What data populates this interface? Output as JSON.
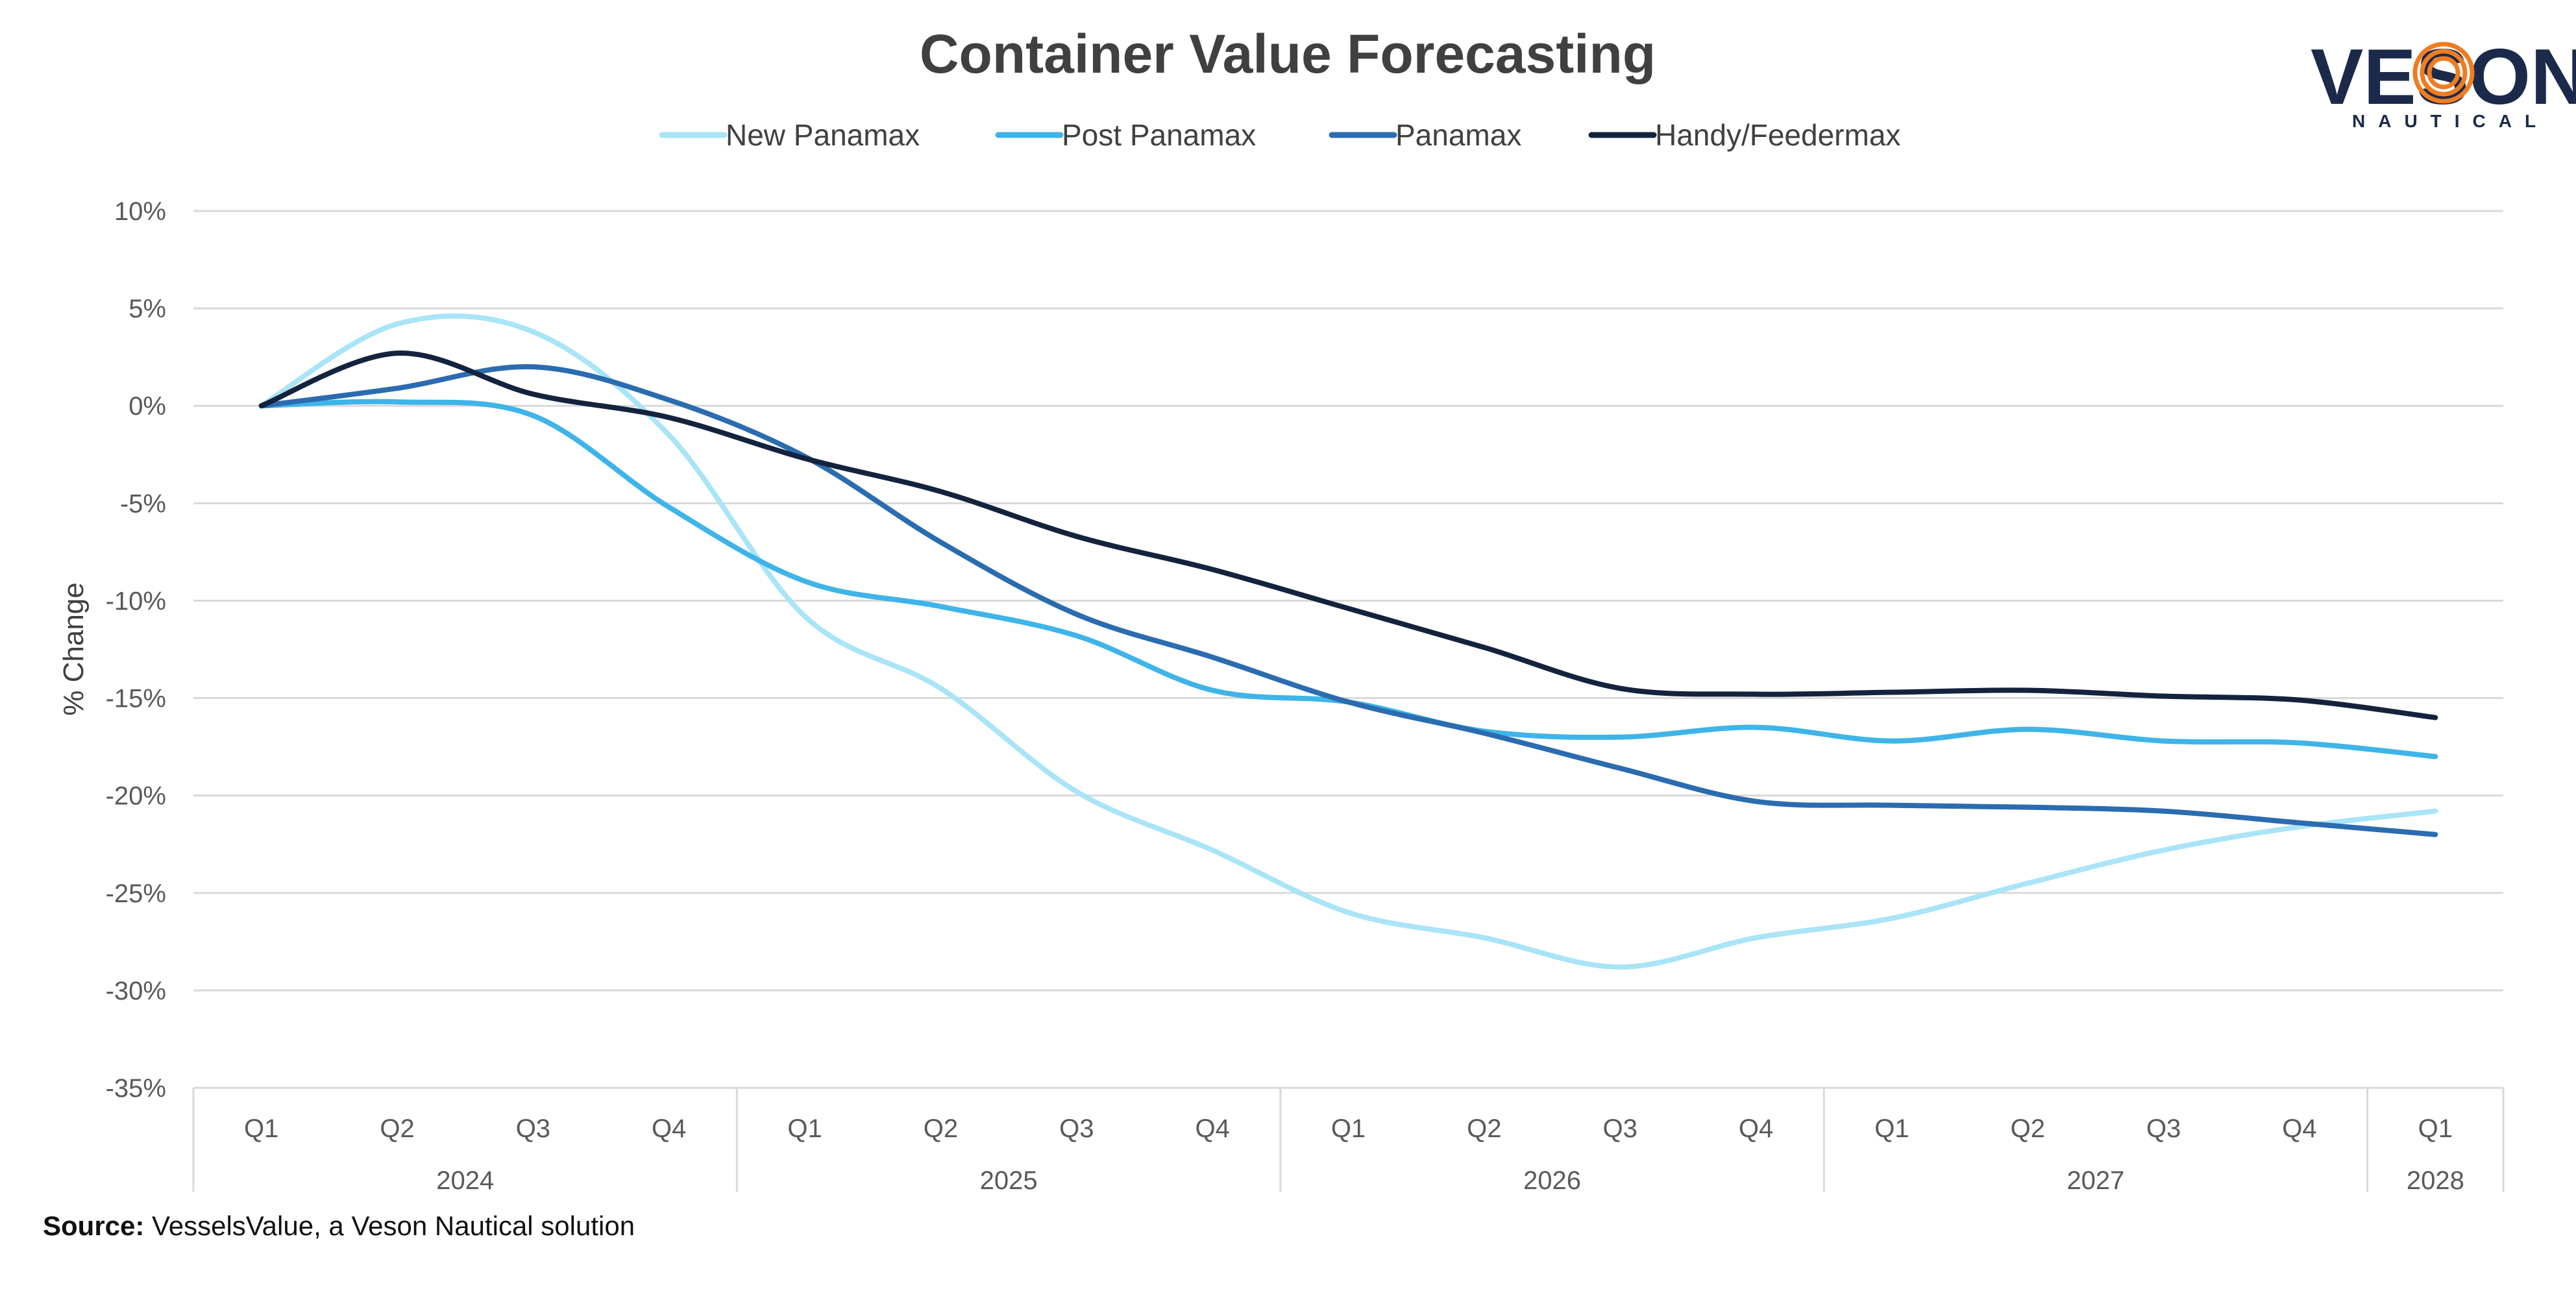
{
  "chart_data": {
    "type": "line",
    "title": "Container Value Forecasting",
    "ylabel": "% Change",
    "xlabel": "",
    "ylim": [
      -35,
      10
    ],
    "yticks": [
      10,
      5,
      0,
      -5,
      -10,
      -15,
      -20,
      -25,
      -30,
      -35
    ],
    "ytick_labels": [
      "10%",
      "5%",
      "0%",
      "-5%",
      "-10%",
      "-15%",
      "-20%",
      "-25%",
      "-30%",
      "-35%"
    ],
    "grid": "horizontal",
    "legend_position": "top",
    "categories": [
      "Q1",
      "Q2",
      "Q3",
      "Q4",
      "Q1",
      "Q2",
      "Q3",
      "Q4",
      "Q1",
      "Q2",
      "Q3",
      "Q4",
      "Q1",
      "Q2",
      "Q3",
      "Q4",
      "Q1"
    ],
    "year_groups": [
      {
        "label": "2024",
        "start": 0,
        "count": 4
      },
      {
        "label": "2025",
        "start": 4,
        "count": 4
      },
      {
        "label": "2026",
        "start": 8,
        "count": 4
      },
      {
        "label": "2027",
        "start": 12,
        "count": 4
      },
      {
        "label": "2028",
        "start": 16,
        "count": 1
      }
    ],
    "series": [
      {
        "name": "New Panamax",
        "color": "#a9e4f7",
        "values": [
          0,
          4.2,
          3.8,
          -1.5,
          -10.8,
          -14.5,
          -19.8,
          -22.8,
          -26.0,
          -27.3,
          -28.8,
          -27.3,
          -26.3,
          -24.5,
          -22.8,
          -21.6,
          -20.8
        ]
      },
      {
        "name": "Post Panamax",
        "color": "#3fb4e8",
        "values": [
          0,
          0.2,
          -0.5,
          -5.2,
          -9.0,
          -10.3,
          -11.8,
          -14.6,
          -15.2,
          -16.7,
          -17.0,
          -16.5,
          -17.2,
          -16.6,
          -17.2,
          -17.3,
          -18.0
        ]
      },
      {
        "name": "Panamax",
        "color": "#2b6cb0",
        "values": [
          0,
          0.9,
          2.0,
          0.3,
          -2.6,
          -7.0,
          -10.7,
          -12.9,
          -15.2,
          -16.8,
          -18.6,
          -20.3,
          -20.5,
          -20.6,
          -20.8,
          -21.4,
          -22.0
        ]
      },
      {
        "name": "Handy/Feedermax",
        "color": "#14233d",
        "values": [
          0,
          2.7,
          0.6,
          -0.6,
          -2.7,
          -4.4,
          -6.7,
          -8.4,
          -10.4,
          -12.4,
          -14.5,
          -14.8,
          -14.7,
          -14.6,
          -14.9,
          -15.1,
          -16.0
        ]
      }
    ]
  },
  "source": {
    "label": "Source:",
    "text": " VesselsValue, a Veson Nautical solution"
  },
  "logo": {
    "main": "VESON",
    "sub": "NAUTICAL",
    "ring_color": "#f07c22"
  }
}
